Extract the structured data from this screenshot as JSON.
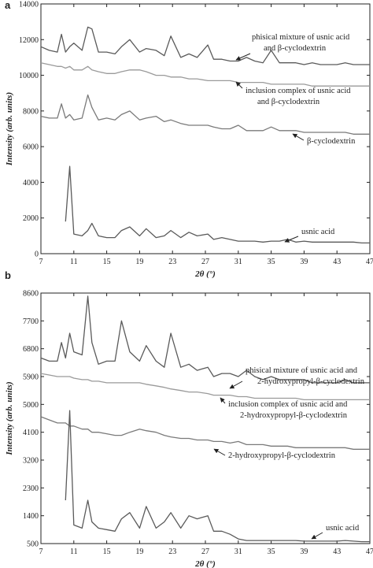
{
  "chart_data": [
    {
      "type": "line",
      "panel_label": "a",
      "x_label": "2θ (°)",
      "y_label": "Intensity (arb. units)",
      "xlim": [
        7,
        47
      ],
      "xticks": [
        7,
        11,
        15,
        19,
        23,
        27,
        31,
        35,
        39,
        43,
        47
      ],
      "ylim": [
        0,
        14000
      ],
      "yticks": [
        0,
        2000,
        4000,
        6000,
        8000,
        10000,
        12000,
        14000
      ],
      "x": [
        7,
        8,
        9,
        9.5,
        10,
        10.5,
        11,
        12,
        12.7,
        13.2,
        14,
        15,
        16,
        16.8,
        17.8,
        19,
        19.8,
        21,
        22,
        22.8,
        24,
        25,
        26,
        27.3,
        28,
        29,
        30,
        31,
        32,
        33,
        34,
        35,
        36,
        37,
        38,
        39,
        40,
        41,
        42,
        43,
        44,
        45,
        46,
        47
      ],
      "series": [
        {
          "label_lines": [
            "phisical mixture of usnic acid",
            "and β-cyclodextrin"
          ],
          "color": "#5a5a5a",
          "values": [
            11600,
            11400,
            11300,
            12300,
            11300,
            11600,
            11800,
            11400,
            12700,
            12600,
            11300,
            11300,
            11200,
            11600,
            12000,
            11300,
            11500,
            11400,
            11100,
            12200,
            11000,
            11200,
            11000,
            11700,
            10900,
            10900,
            10800,
            10800,
            11000,
            10800,
            10700,
            11400,
            10700,
            10700,
            10700,
            10600,
            10700,
            10600,
            10600,
            10600,
            10700,
            10600,
            10600,
            10600
          ]
        },
        {
          "label_lines": [
            "inclusion complex of usnic acid",
            "and β-cyclodextrin"
          ],
          "color": "#9a9a9a",
          "values": [
            10700,
            10600,
            10500,
            10500,
            10400,
            10500,
            10300,
            10300,
            10500,
            10300,
            10200,
            10100,
            10100,
            10200,
            10300,
            10300,
            10200,
            10000,
            10000,
            9900,
            9900,
            9800,
            9800,
            9700,
            9700,
            9700,
            9700,
            9600,
            9600,
            9600,
            9600,
            9500,
            9500,
            9500,
            9500,
            9500,
            9400,
            9400,
            9400,
            9400,
            9400,
            9400,
            9400,
            9400
          ]
        },
        {
          "label_lines": [
            "β-cyclodextrin"
          ],
          "color": "#7a7a7a",
          "values": [
            7700,
            7600,
            7600,
            8400,
            7600,
            7800,
            7500,
            7600,
            8900,
            8200,
            7500,
            7600,
            7500,
            7800,
            8000,
            7500,
            7600,
            7700,
            7400,
            7500,
            7300,
            7200,
            7200,
            7200,
            7100,
            7000,
            7000,
            7200,
            6900,
            6900,
            6900,
            7100,
            6900,
            6900,
            6900,
            6800,
            6800,
            6800,
            6800,
            6800,
            6800,
            6700,
            6700,
            6700
          ]
        },
        {
          "label_lines": [
            "usnic acid"
          ],
          "color": "#5a5a5a",
          "values": [
            null,
            null,
            null,
            null,
            1800,
            4900,
            1100,
            1000,
            1300,
            1700,
            1000,
            900,
            900,
            1300,
            1500,
            1000,
            1400,
            900,
            1000,
            1300,
            900,
            1200,
            1000,
            1100,
            800,
            900,
            800,
            700,
            700,
            700,
            650,
            700,
            700,
            800,
            650,
            700,
            650,
            650,
            650,
            650,
            650,
            650,
            600,
            600
          ]
        }
      ]
    },
    {
      "type": "line",
      "panel_label": "b",
      "x_label": "2θ (°)",
      "y_label": "Intensity (arb. units)",
      "xlim": [
        7,
        47
      ],
      "xticks": [
        7,
        11,
        15,
        19,
        23,
        27,
        31,
        35,
        39,
        43,
        47
      ],
      "ylim": [
        500,
        8600
      ],
      "yticks": [
        500,
        1400,
        2300,
        3200,
        4100,
        5000,
        5900,
        6800,
        7700,
        8600
      ],
      "x": [
        7,
        8,
        9,
        9.5,
        10,
        10.5,
        11,
        12,
        12.7,
        13.2,
        14,
        15,
        16,
        16.8,
        17.8,
        19,
        19.8,
        21,
        22,
        22.8,
        24,
        25,
        26,
        27.3,
        28,
        29,
        30,
        31,
        32,
        33,
        34,
        35,
        36,
        37,
        38,
        39,
        40,
        41,
        42,
        43,
        44,
        45,
        46,
        47
      ],
      "series": [
        {
          "label_lines": [
            "phisical mixture of usnic acid and",
            "2-hydroxypropyl-β-cyclodextrin"
          ],
          "color": "#5a5a5a",
          "values": [
            6500,
            6400,
            6400,
            7000,
            6500,
            7300,
            6700,
            6600,
            8500,
            7000,
            6300,
            6400,
            6400,
            7700,
            6700,
            6400,
            6900,
            6400,
            6200,
            7300,
            6200,
            6300,
            6100,
            6200,
            5900,
            6000,
            6000,
            5900,
            6100,
            5900,
            5800,
            5900,
            5800,
            5800,
            5800,
            5800,
            5700,
            5700,
            5700,
            5700,
            5800,
            5700,
            5700,
            5700
          ]
        },
        {
          "label_lines": [
            "inclusion complex of usnic acid and",
            "2-hydroxypropyl-β-cyclodextrin"
          ],
          "color": "#9a9a9a",
          "values": [
            6000,
            5950,
            5900,
            5900,
            5900,
            5900,
            5850,
            5800,
            5800,
            5750,
            5750,
            5700,
            5700,
            5700,
            5700,
            5700,
            5650,
            5600,
            5550,
            5500,
            5450,
            5400,
            5400,
            5350,
            5300,
            5300,
            5300,
            5250,
            5250,
            5200,
            5200,
            5200,
            5200,
            5200,
            5200,
            5150,
            5150,
            5150,
            5150,
            5150,
            5150,
            5150,
            5150,
            5150
          ]
        },
        {
          "label_lines": [
            "2-hydroxypropyl-β-cyclodextrin"
          ],
          "color": "#7a7a7a",
          "values": [
            4600,
            4500,
            4400,
            4400,
            4400,
            4300,
            4300,
            4200,
            4200,
            4100,
            4100,
            4050,
            4000,
            4000,
            4100,
            4200,
            4150,
            4100,
            4000,
            3950,
            3900,
            3900,
            3850,
            3850,
            3800,
            3800,
            3750,
            3800,
            3700,
            3700,
            3700,
            3650,
            3650,
            3650,
            3600,
            3600,
            3600,
            3600,
            3600,
            3600,
            3600,
            3550,
            3550,
            3550
          ]
        },
        {
          "label_lines": [
            "usnic acid"
          ],
          "color": "#5a5a5a",
          "values": [
            null,
            null,
            null,
            null,
            1900,
            4800,
            1100,
            1000,
            1900,
            1200,
            1000,
            950,
            900,
            1300,
            1500,
            1000,
            1700,
            1000,
            1200,
            1500,
            1000,
            1400,
            1300,
            1400,
            900,
            900,
            800,
            650,
            600,
            600,
            600,
            600,
            600,
            600,
            600,
            580,
            580,
            580,
            580,
            580,
            600,
            580,
            560,
            560
          ]
        }
      ]
    }
  ]
}
